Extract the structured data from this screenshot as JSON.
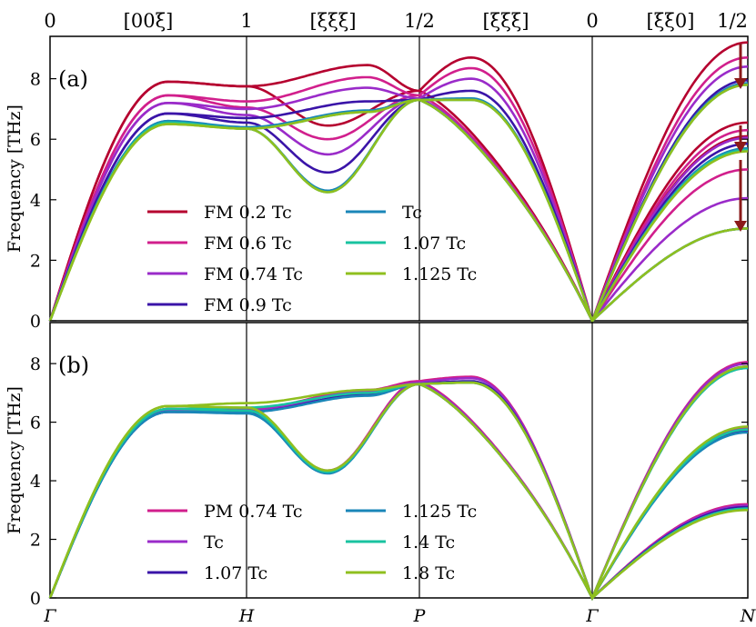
{
  "top_labels": [
    "0",
    "[00ξ]",
    "1",
    "[ξξξ]",
    "1/2",
    "[ξξξ]",
    "0",
    "[ξξ0]",
    "1/2"
  ],
  "chart_data": [
    {
      "type": "line",
      "panel_label": "(a)",
      "ylabel": "Frequency [THz]",
      "ylim": [
        0,
        9.4
      ],
      "yticks": [
        0,
        2,
        4,
        6,
        8
      ],
      "x_ticks": [
        "Γ",
        "H",
        "P",
        "Γ",
        "N"
      ],
      "x": [
        0,
        1,
        2,
        3,
        4
      ],
      "legend": {
        "columns": 2,
        "placement": "lower-center"
      },
      "series": [
        {
          "name": "FM 0.2 Tc",
          "color": "#b5002f",
          "gh_peak": 7.9,
          "h_upper": 7.75,
          "h_lower": 7.75,
          "hp_upper": 8.45,
          "hp_lower_min": 6.45,
          "hp_lower_max": 8.7,
          "p": 7.6,
          "n": [
            9.2,
            6.55
          ],
          "n_low": 6.1
        },
        {
          "name": "FM 0.6 Tc",
          "color": "#d11f8c",
          "gh_peak": 7.45,
          "h_upper": 7.25,
          "h_lower": 7.05,
          "hp_upper": 8.05,
          "hp_lower_min": 6.0,
          "hp_lower_max": 8.35,
          "p": 7.45,
          "n": [
            8.7,
            6.3
          ],
          "n_low": 5.0
        },
        {
          "name": "FM 0.74 Tc",
          "color": "#9a2bc9",
          "gh_peak": 7.2,
          "h_upper": 7.0,
          "h_lower": 6.8,
          "hp_upper": 7.7,
          "hp_lower_min": 5.5,
          "hp_lower_max": 8.0,
          "p": 7.35,
          "n": [
            8.4,
            6.05
          ],
          "n_low": 4.05
        },
        {
          "name": "FM 0.9 Tc",
          "color": "#3a14a8",
          "gh_peak": 6.85,
          "h_upper": 6.7,
          "h_lower": 6.55,
          "hp_upper": 7.25,
          "hp_lower_min": 4.9,
          "hp_lower_max": 7.6,
          "p": 7.3,
          "n": [
            7.95,
            5.85
          ],
          "n_low": 3.05
        },
        {
          "name": "Tc",
          "color": "#1a86b8",
          "gh_peak": 6.6,
          "h_upper": 6.4,
          "h_lower": 6.35,
          "hp_upper": 6.95,
          "hp_lower_min": 4.3,
          "hp_lower_max": 7.35,
          "p": 7.3,
          "n": [
            7.85,
            5.7
          ],
          "n_low": 3.05
        },
        {
          "name": "1.07 Tc",
          "color": "#19c3a0",
          "gh_peak": 6.55,
          "h_upper": 6.35,
          "h_lower": 6.35,
          "hp_upper": 6.9,
          "hp_lower_min": 4.25,
          "hp_lower_max": 7.3,
          "p": 7.3,
          "n": [
            7.8,
            5.65
          ],
          "n_low": 3.05
        },
        {
          "name": "1.125 Tc",
          "color": "#8fbf1f",
          "gh_peak": 6.5,
          "h_upper": 6.35,
          "h_lower": 6.35,
          "hp_upper": 6.9,
          "hp_lower_min": 4.25,
          "hp_lower_max": 7.3,
          "p": 7.3,
          "n": [
            7.8,
            5.6
          ],
          "n_low": 3.05
        }
      ]
    },
    {
      "type": "line",
      "panel_label": "(b)",
      "ylabel": "Frequency [THz]",
      "ylim": [
        0,
        9.4
      ],
      "yticks": [
        0,
        2,
        4,
        6,
        8
      ],
      "x_ticks": [
        "Γ",
        "H",
        "P",
        "Γ",
        "N"
      ],
      "x": [
        0,
        1,
        2,
        3,
        4
      ],
      "legend": {
        "columns": 2,
        "placement": "lower-center"
      },
      "series": [
        {
          "name": "PM 0.74 Tc",
          "color": "#d11f8c",
          "gh_peak": 6.45,
          "h_upper": 6.45,
          "h_lower": 6.4,
          "hp_upper": 7.1,
          "hp_lower_min": 4.35,
          "hp_lower_max": 7.55,
          "p": 7.4,
          "n": [
            8.05,
            5.8
          ],
          "n_low": 3.2
        },
        {
          "name": "Tc",
          "color": "#9a2bc9",
          "gh_peak": 6.4,
          "h_upper": 6.4,
          "h_lower": 6.35,
          "hp_upper": 7.05,
          "hp_lower_min": 4.3,
          "hp_lower_max": 7.5,
          "p": 7.35,
          "n": [
            8.0,
            5.75
          ],
          "n_low": 3.15
        },
        {
          "name": "1.07 Tc",
          "color": "#3a14a8",
          "gh_peak": 6.35,
          "h_upper": 6.35,
          "h_lower": 6.35,
          "hp_upper": 6.95,
          "hp_lower_min": 4.3,
          "hp_lower_max": 7.4,
          "p": 7.3,
          "n": [
            7.9,
            5.7
          ],
          "n_low": 3.1
        },
        {
          "name": "1.125 Tc",
          "color": "#1a86b8",
          "gh_peak": 6.35,
          "h_upper": 6.35,
          "h_lower": 6.3,
          "hp_upper": 6.9,
          "hp_lower_min": 4.25,
          "hp_lower_max": 7.35,
          "p": 7.3,
          "n": [
            7.85,
            5.65
          ],
          "n_low": 3.05
        },
        {
          "name": "1.4 Tc",
          "color": "#19c3a0",
          "gh_peak": 6.45,
          "h_upper": 6.5,
          "h_lower": 6.4,
          "hp_upper": 7.0,
          "hp_lower_min": 4.3,
          "hp_lower_max": 7.35,
          "p": 7.3,
          "n": [
            7.85,
            5.75
          ],
          "n_low": 3.05
        },
        {
          "name": "1.8 Tc",
          "color": "#8fbf1f",
          "gh_peak": 6.55,
          "h_upper": 6.65,
          "h_lower": 6.5,
          "hp_upper": 7.1,
          "hp_lower_min": 4.35,
          "hp_lower_max": 7.35,
          "p": 7.3,
          "n": [
            7.9,
            5.85
          ],
          "n_low": 3.0
        }
      ]
    }
  ],
  "arrow_color": "#8b1a1a"
}
